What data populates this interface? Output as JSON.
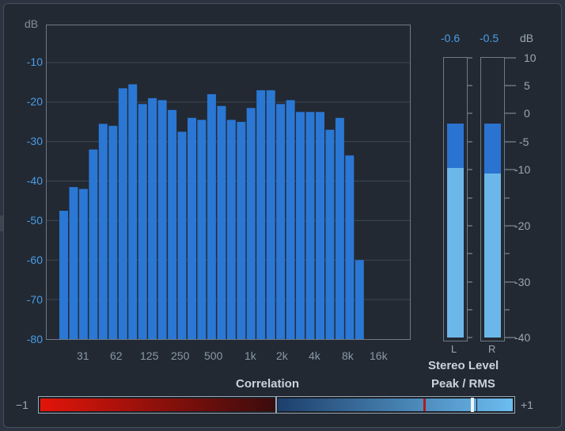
{
  "spectrum": {
    "unit_label": "dB",
    "y_labels": [
      "-10",
      "-20",
      "-30",
      "-40",
      "-50",
      "-60",
      "-70",
      "-80"
    ],
    "x_labels": [
      "31",
      "62",
      "125",
      "250",
      "500",
      "1k",
      "2k",
      "4k",
      "8k",
      "16k"
    ],
    "bars_db": [
      -47.5,
      -41.5,
      -42,
      -32,
      -25.5,
      -26,
      -16.5,
      -15.5,
      -20.5,
      -19,
      -19.5,
      -22,
      -27.5,
      -24,
      -24.5,
      -18,
      -21,
      -24.5,
      -25,
      -21.5,
      -17,
      -17,
      -20.5,
      -19.5,
      -22.5,
      -22.5,
      -22.5,
      -27,
      -24,
      -33.5,
      -60
    ],
    "bar_color": "#2b77d4"
  },
  "meters": {
    "left": {
      "peak_readout": "-0.6",
      "channel": "L",
      "peak_level": 0.77,
      "rms_level": 0.61
    },
    "right": {
      "peak_readout": "-0.5",
      "channel": "R",
      "peak_level": 0.77,
      "rms_level": 0.59
    },
    "unit_label": "dB",
    "scale_labels": [
      "10",
      "5",
      "0",
      "-5",
      "-10",
      "-20",
      "-30",
      "-40"
    ],
    "caption_line1": "Stereo Level",
    "caption_line2": "Peak / RMS",
    "peak_color": "#2b73d0",
    "rms_color": "#6bb7e9"
  },
  "correlation": {
    "title": "Correlation",
    "min_label": "−1",
    "max_label": "+1",
    "negative_color": "#e3150a",
    "positive_color": "#6cbdf0"
  }
}
